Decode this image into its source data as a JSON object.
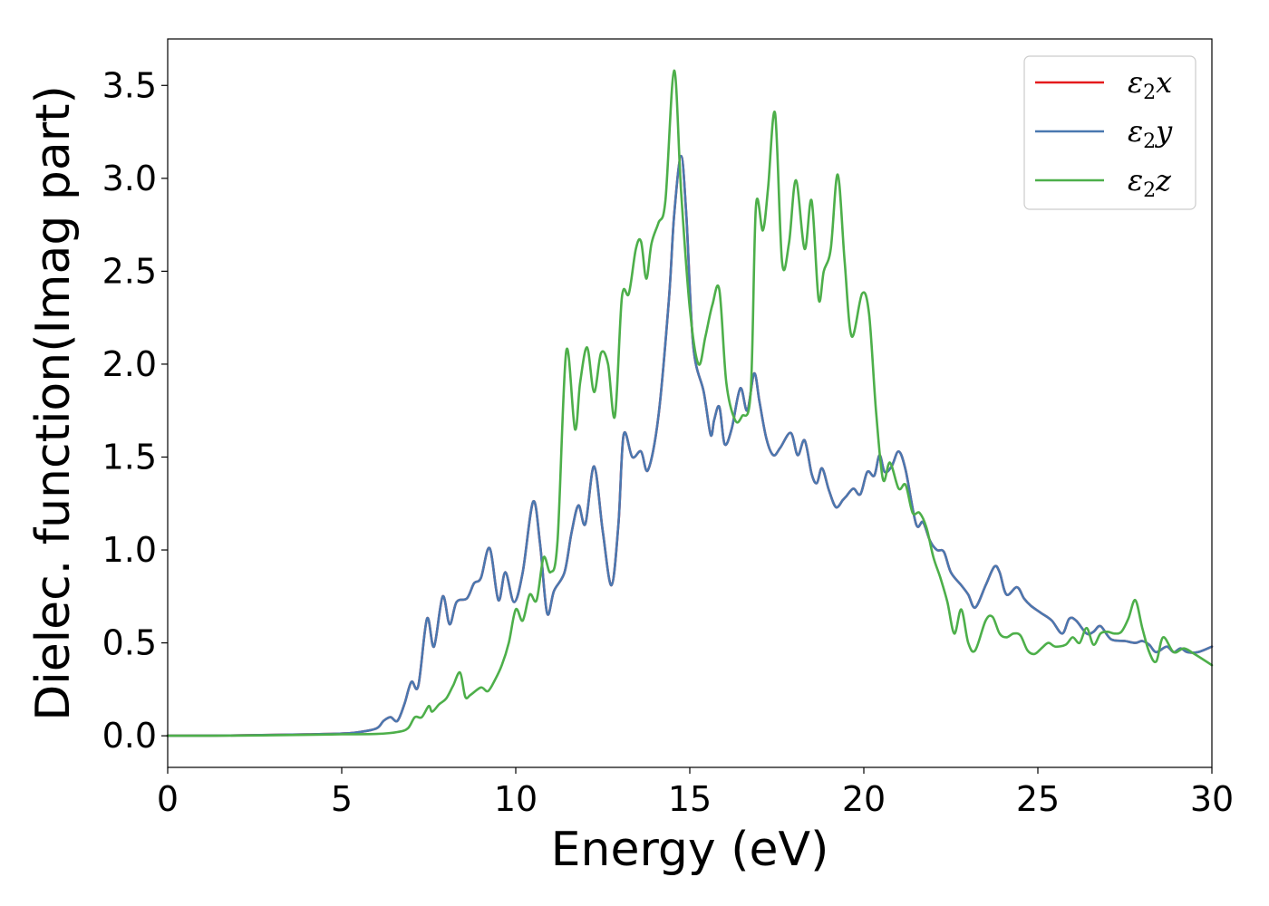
{
  "chart_data": {
    "type": "line",
    "title": "",
    "xlabel": "Energy (eV)",
    "ylabel": "Dielec. function(Imag part)",
    "xlim": [
      0,
      30
    ],
    "ylim": [
      -0.17,
      3.75
    ],
    "xticks": [
      0,
      5,
      10,
      15,
      20,
      25,
      30
    ],
    "xtick_labels": [
      "0",
      "5",
      "10",
      "15",
      "20",
      "25",
      "30"
    ],
    "yticks": [
      0.0,
      0.5,
      1.0,
      1.5,
      2.0,
      2.5,
      3.0,
      3.5
    ],
    "ytick_labels": [
      "0.0",
      "0.5",
      "1.0",
      "1.5",
      "2.0",
      "2.5",
      "3.0",
      "3.5"
    ],
    "grid": false,
    "legend_position": "top-right",
    "series": [
      {
        "name": "ε2x",
        "legend_main": "ε",
        "legend_sub": "2",
        "legend_var": "x",
        "color": "#e41a1c",
        "x": [
          0,
          2,
          4,
          5,
          5.5,
          6,
          6.2,
          6.4,
          6.6,
          6.8,
          7.0,
          7.2,
          7.45,
          7.65,
          7.9,
          8.1,
          8.3,
          8.6,
          8.8,
          9.0,
          9.25,
          9.5,
          9.7,
          9.95,
          10.2,
          10.5,
          10.7,
          10.9,
          11.1,
          11.4,
          11.6,
          11.8,
          12.0,
          12.25,
          12.5,
          12.75,
          12.95,
          13.1,
          13.35,
          13.6,
          13.8,
          14.1,
          14.4,
          14.55,
          14.75,
          14.9,
          15.1,
          15.4,
          15.6,
          15.7,
          15.85,
          16.0,
          16.2,
          16.45,
          16.65,
          16.85,
          17.0,
          17.2,
          17.4,
          17.6,
          17.9,
          18.1,
          18.3,
          18.5,
          18.65,
          18.8,
          19.0,
          19.2,
          19.4,
          19.5,
          19.7,
          19.9,
          20.1,
          20.3,
          20.45,
          20.6,
          20.8,
          21.0,
          21.2,
          21.5,
          21.7,
          21.9,
          22.1,
          22.3,
          22.5,
          22.8,
          23.0,
          23.2,
          23.5,
          23.75,
          23.9,
          24.1,
          24.4,
          24.6,
          24.8,
          25.1,
          25.4,
          25.7,
          25.9,
          26.1,
          26.4,
          26.6,
          26.8,
          27.1,
          27.5,
          27.8,
          28.0,
          28.2,
          28.4,
          28.7,
          28.9,
          29.1,
          29.3,
          29.6,
          30.0
        ],
        "y": [
          0.0,
          0.002,
          0.008,
          0.012,
          0.02,
          0.04,
          0.08,
          0.1,
          0.08,
          0.17,
          0.29,
          0.27,
          0.63,
          0.48,
          0.75,
          0.6,
          0.72,
          0.74,
          0.82,
          0.85,
          1.01,
          0.73,
          0.88,
          0.72,
          0.88,
          1.26,
          1.03,
          0.66,
          0.78,
          0.88,
          1.09,
          1.24,
          1.14,
          1.45,
          1.1,
          0.81,
          1.14,
          1.62,
          1.5,
          1.53,
          1.43,
          1.72,
          2.35,
          2.8,
          3.12,
          2.8,
          2.1,
          1.85,
          1.62,
          1.7,
          1.77,
          1.57,
          1.65,
          1.87,
          1.75,
          1.95,
          1.8,
          1.6,
          1.51,
          1.55,
          1.63,
          1.51,
          1.59,
          1.41,
          1.36,
          1.44,
          1.32,
          1.23,
          1.27,
          1.29,
          1.33,
          1.3,
          1.42,
          1.4,
          1.51,
          1.42,
          1.45,
          1.53,
          1.43,
          1.14,
          1.15,
          1.05,
          1.0,
          0.99,
          0.88,
          0.81,
          0.76,
          0.69,
          0.81,
          0.91,
          0.88,
          0.76,
          0.8,
          0.74,
          0.7,
          0.66,
          0.62,
          0.55,
          0.63,
          0.62,
          0.55,
          0.56,
          0.59,
          0.52,
          0.51,
          0.5,
          0.51,
          0.49,
          0.45,
          0.48,
          0.45,
          0.47,
          0.45,
          0.45,
          0.48
        ]
      },
      {
        "name": "ε2y",
        "legend_main": "ε",
        "legend_sub": "2",
        "legend_var": "y",
        "color": "#4a78b0",
        "x": [
          0,
          2,
          4,
          5,
          5.5,
          6,
          6.2,
          6.4,
          6.6,
          6.8,
          7.0,
          7.2,
          7.45,
          7.65,
          7.9,
          8.1,
          8.3,
          8.6,
          8.8,
          9.0,
          9.25,
          9.5,
          9.7,
          9.95,
          10.2,
          10.5,
          10.7,
          10.9,
          11.1,
          11.4,
          11.6,
          11.8,
          12.0,
          12.25,
          12.5,
          12.75,
          12.95,
          13.1,
          13.35,
          13.6,
          13.8,
          14.1,
          14.4,
          14.55,
          14.75,
          14.9,
          15.1,
          15.4,
          15.6,
          15.7,
          15.85,
          16.0,
          16.2,
          16.45,
          16.65,
          16.85,
          17.0,
          17.2,
          17.4,
          17.6,
          17.9,
          18.1,
          18.3,
          18.5,
          18.65,
          18.8,
          19.0,
          19.2,
          19.4,
          19.5,
          19.7,
          19.9,
          20.1,
          20.3,
          20.45,
          20.6,
          20.8,
          21.0,
          21.2,
          21.5,
          21.7,
          21.9,
          22.1,
          22.3,
          22.5,
          22.8,
          23.0,
          23.2,
          23.5,
          23.75,
          23.9,
          24.1,
          24.4,
          24.6,
          24.8,
          25.1,
          25.4,
          25.7,
          25.9,
          26.1,
          26.4,
          26.6,
          26.8,
          27.1,
          27.5,
          27.8,
          28.0,
          28.2,
          28.4,
          28.7,
          28.9,
          29.1,
          29.3,
          29.6,
          30.0
        ],
        "y": [
          0.0,
          0.002,
          0.008,
          0.012,
          0.02,
          0.04,
          0.08,
          0.1,
          0.08,
          0.17,
          0.29,
          0.27,
          0.63,
          0.48,
          0.75,
          0.6,
          0.72,
          0.74,
          0.82,
          0.85,
          1.01,
          0.73,
          0.88,
          0.72,
          0.88,
          1.26,
          1.03,
          0.66,
          0.78,
          0.88,
          1.09,
          1.24,
          1.14,
          1.45,
          1.1,
          0.81,
          1.14,
          1.62,
          1.5,
          1.53,
          1.43,
          1.72,
          2.35,
          2.8,
          3.12,
          2.8,
          2.1,
          1.85,
          1.62,
          1.7,
          1.77,
          1.57,
          1.65,
          1.87,
          1.75,
          1.95,
          1.8,
          1.6,
          1.51,
          1.55,
          1.63,
          1.51,
          1.59,
          1.41,
          1.36,
          1.44,
          1.32,
          1.23,
          1.27,
          1.29,
          1.33,
          1.3,
          1.42,
          1.4,
          1.51,
          1.42,
          1.45,
          1.53,
          1.43,
          1.14,
          1.15,
          1.05,
          1.0,
          0.99,
          0.88,
          0.81,
          0.76,
          0.69,
          0.81,
          0.91,
          0.88,
          0.76,
          0.8,
          0.74,
          0.7,
          0.66,
          0.62,
          0.55,
          0.63,
          0.62,
          0.55,
          0.56,
          0.59,
          0.52,
          0.51,
          0.5,
          0.51,
          0.49,
          0.45,
          0.48,
          0.45,
          0.47,
          0.45,
          0.45,
          0.48
        ]
      },
      {
        "name": "ε2z",
        "legend_main": "ε",
        "legend_sub": "2",
        "legend_var": "z",
        "color": "#4daf4a",
        "x": [
          0,
          2,
          4,
          5,
          6,
          6.6,
          6.9,
          7.1,
          7.3,
          7.5,
          7.6,
          7.8,
          8.0,
          8.2,
          8.4,
          8.55,
          8.7,
          9.0,
          9.2,
          9.4,
          9.6,
          9.8,
          10.0,
          10.2,
          10.4,
          10.6,
          10.8,
          11.0,
          11.2,
          11.45,
          11.7,
          11.85,
          12.05,
          12.25,
          12.45,
          12.65,
          12.85,
          13.05,
          13.25,
          13.45,
          13.6,
          13.75,
          13.9,
          14.1,
          14.3,
          14.55,
          14.75,
          15.0,
          15.25,
          15.45,
          15.65,
          15.85,
          16.05,
          16.3,
          16.5,
          16.75,
          16.9,
          17.1,
          17.25,
          17.45,
          17.65,
          17.85,
          18.05,
          18.3,
          18.5,
          18.7,
          18.85,
          19.05,
          19.25,
          19.45,
          19.65,
          19.95,
          20.15,
          20.35,
          20.55,
          20.75,
          21.0,
          21.2,
          21.4,
          21.6,
          21.8,
          22.0,
          22.2,
          22.4,
          22.6,
          22.8,
          23.0,
          23.2,
          23.5,
          23.7,
          23.9,
          24.1,
          24.3,
          24.5,
          24.7,
          24.9,
          25.1,
          25.3,
          25.5,
          25.8,
          26.0,
          26.2,
          26.4,
          26.6,
          26.8,
          27.0,
          27.2,
          27.4,
          27.6,
          27.8,
          28.0,
          28.2,
          28.4,
          28.6,
          28.9,
          29.2,
          29.5,
          30.0
        ],
        "y": [
          0.0,
          0.001,
          0.005,
          0.008,
          0.01,
          0.02,
          0.04,
          0.1,
          0.1,
          0.16,
          0.13,
          0.17,
          0.2,
          0.27,
          0.34,
          0.21,
          0.22,
          0.26,
          0.24,
          0.3,
          0.38,
          0.5,
          0.68,
          0.62,
          0.76,
          0.73,
          0.96,
          0.88,
          1.05,
          2.07,
          1.65,
          1.9,
          2.09,
          1.85,
          2.06,
          2.0,
          1.72,
          2.36,
          2.38,
          2.62,
          2.66,
          2.46,
          2.65,
          2.76,
          2.88,
          3.58,
          2.93,
          2.3,
          2.0,
          2.15,
          2.32,
          2.4,
          1.9,
          1.7,
          1.72,
          1.85,
          2.85,
          2.72,
          2.95,
          3.35,
          2.55,
          2.65,
          2.99,
          2.62,
          2.88,
          2.35,
          2.5,
          2.62,
          3.02,
          2.55,
          2.15,
          2.38,
          2.27,
          1.75,
          1.38,
          1.47,
          1.33,
          1.35,
          1.2,
          1.2,
          1.12,
          0.96,
          0.85,
          0.72,
          0.55,
          0.68,
          0.5,
          0.46,
          0.62,
          0.64,
          0.55,
          0.53,
          0.55,
          0.54,
          0.46,
          0.44,
          0.47,
          0.5,
          0.48,
          0.49,
          0.53,
          0.5,
          0.58,
          0.49,
          0.55,
          0.56,
          0.55,
          0.56,
          0.63,
          0.73,
          0.58,
          0.45,
          0.4,
          0.53,
          0.45,
          0.47,
          0.44,
          0.38
        ]
      }
    ]
  }
}
